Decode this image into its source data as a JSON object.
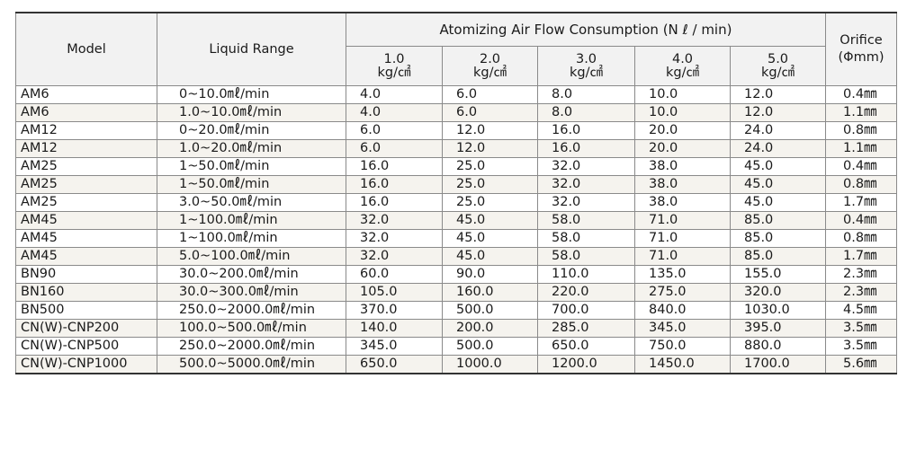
{
  "header": {
    "model": "Model",
    "liquid_range": "Liquid Range",
    "air_flow": "Atomizing Air Flow Consumption (N ℓ / min)",
    "orifice_line1": "Orifice",
    "orifice_line2": "(Φmm)",
    "pressures": [
      {
        "value": "1.0",
        "unit": "kg/㎠"
      },
      {
        "value": "2.0",
        "unit": "kg/㎠"
      },
      {
        "value": "3.0",
        "unit": "kg/㎠"
      },
      {
        "value": "4.0",
        "unit": "kg/㎠"
      },
      {
        "value": "5.0",
        "unit": "kg/㎠"
      }
    ]
  },
  "rows": [
    {
      "model": "AM6",
      "range": "0~10.0㎖/min",
      "f1": "4.0",
      "f2": "6.0",
      "f3": "8.0",
      "f4": "10.0",
      "f5": "12.0",
      "orifice": "0.4㎜"
    },
    {
      "model": "AM6",
      "range": "1.0~10.0㎖/min",
      "f1": "4.0",
      "f2": "6.0",
      "f3": "8.0",
      "f4": "10.0",
      "f5": "12.0",
      "orifice": "1.1㎜"
    },
    {
      "model": "AM12",
      "range": "0~20.0㎖/min",
      "f1": "6.0",
      "f2": "12.0",
      "f3": "16.0",
      "f4": "20.0",
      "f5": "24.0",
      "orifice": "0.8㎜"
    },
    {
      "model": "AM12",
      "range": "1.0~20.0㎖/min",
      "f1": "6.0",
      "f2": "12.0",
      "f3": "16.0",
      "f4": "20.0",
      "f5": "24.0",
      "orifice": "1.1㎜"
    },
    {
      "model": "AM25",
      "range": "1~50.0㎖/min",
      "f1": "16.0",
      "f2": "25.0",
      "f3": "32.0",
      "f4": "38.0",
      "f5": "45.0",
      "orifice": "0.4㎜"
    },
    {
      "model": "AM25",
      "range": "1~50.0㎖/min",
      "f1": "16.0",
      "f2": "25.0",
      "f3": "32.0",
      "f4": "38.0",
      "f5": "45.0",
      "orifice": "0.8㎜"
    },
    {
      "model": "AM25",
      "range": "3.0~50.0㎖/min",
      "f1": "16.0",
      "f2": "25.0",
      "f3": "32.0",
      "f4": "38.0",
      "f5": "45.0",
      "orifice": "1.7㎜"
    },
    {
      "model": "AM45",
      "range": "1~100.0㎖/min",
      "f1": "32.0",
      "f2": "45.0",
      "f3": "58.0",
      "f4": "71.0",
      "f5": "85.0",
      "orifice": "0.4㎜"
    },
    {
      "model": "AM45",
      "range": "1~100.0㎖/min",
      "f1": "32.0",
      "f2": "45.0",
      "f3": "58.0",
      "f4": "71.0",
      "f5": "85.0",
      "orifice": "0.8㎜"
    },
    {
      "model": "AM45",
      "range": "5.0~100.0㎖/min",
      "f1": "32.0",
      "f2": "45.0",
      "f3": "58.0",
      "f4": "71.0",
      "f5": "85.0",
      "orifice": "1.7㎜"
    },
    {
      "model": "BN90",
      "range": "30.0~200.0㎖/min",
      "f1": "60.0",
      "f2": "90.0",
      "f3": "110.0",
      "f4": "135.0",
      "f5": "155.0",
      "orifice": "2.3㎜"
    },
    {
      "model": "BN160",
      "range": "30.0~300.0㎖/min",
      "f1": "105.0",
      "f2": "160.0",
      "f3": "220.0",
      "f4": "275.0",
      "f5": "320.0",
      "orifice": "2.3㎜"
    },
    {
      "model": "BN500",
      "range": "250.0~2000.0㎖/min",
      "f1": "370.0",
      "f2": "500.0",
      "f3": "700.0",
      "f4": "840.0",
      "f5": "1030.0",
      "orifice": "4.5㎜"
    },
    {
      "model": "CN(W)-CNP200",
      "range": "100.0~500.0㎖/min",
      "f1": "140.0",
      "f2": "200.0",
      "f3": "285.0",
      "f4": "345.0",
      "f5": "395.0",
      "orifice": "3.5㎜"
    },
    {
      "model": "CN(W)-CNP500",
      "range": "250.0~2000.0㎖/min",
      "f1": "345.0",
      "f2": "500.0",
      "f3": "650.0",
      "f4": "750.0",
      "f5": "880.0",
      "orifice": "3.5㎜"
    },
    {
      "model": "CN(W)-CNP1000",
      "range": "500.0~5000.0㎖/min",
      "f1": "650.0",
      "f2": "1000.0",
      "f3": "1200.0",
      "f4": "1450.0",
      "f5": "1700.0",
      "orifice": "5.6㎜"
    }
  ]
}
